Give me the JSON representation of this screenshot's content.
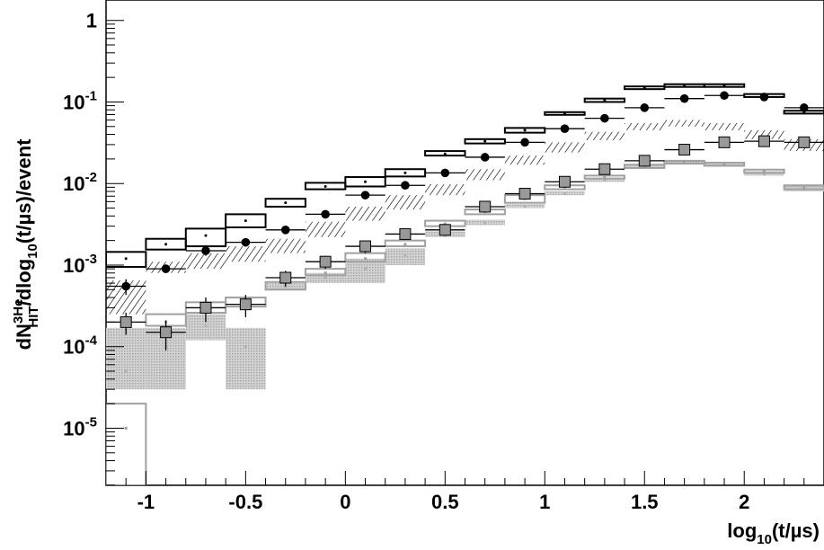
{
  "chart_data": {
    "type": "line",
    "title": "",
    "xlabel": "log10(t/µs)",
    "ylabel": "dN3He_HIT/dlog10(t/µs)/event",
    "xlim": [
      -1.2,
      2.4
    ],
    "ylim_log10": [
      -5.7,
      0.25
    ],
    "log_y": true,
    "grid": false,
    "x_ticks": [
      {
        "value": -1,
        "label": "-1"
      },
      {
        "value": -0.5,
        "label": "-0.5"
      },
      {
        "value": 0,
        "label": "0"
      },
      {
        "value": 0.5,
        "label": "0.5"
      },
      {
        "value": 1,
        "label": "1"
      },
      {
        "value": 1.5,
        "label": "1.5"
      },
      {
        "value": 2,
        "label": "2"
      }
    ],
    "y_ticks": [
      {
        "value": 1,
        "base": "1",
        "exp": ""
      },
      {
        "value": 0.1,
        "base": "10",
        "exp": "-1"
      },
      {
        "value": 0.01,
        "base": "10",
        "exp": "-2"
      },
      {
        "value": 0.001,
        "base": "10",
        "exp": "-3"
      },
      {
        "value": 0.0001,
        "base": "10",
        "exp": "-4"
      },
      {
        "value": 1e-05,
        "base": "10",
        "exp": "-5"
      }
    ],
    "bin_width": 0.2,
    "series": [
      {
        "style": "black-open-boxes",
        "color": "#000000",
        "x": [
          -1.1,
          -0.9,
          -0.7,
          -0.5,
          -0.3,
          -0.1,
          0.1,
          0.3,
          0.5,
          0.7,
          0.9,
          1.1,
          1.3,
          1.5,
          1.7,
          1.9,
          2.1,
          2.3
        ],
        "y": [
          0.0012,
          0.0018,
          0.0023,
          0.0035,
          0.0058,
          0.0092,
          0.0105,
          0.0135,
          0.023,
          0.033,
          0.045,
          0.072,
          0.105,
          0.15,
          0.16,
          0.16,
          0.12,
          0.075
        ],
        "y_lo": [
          0.00095,
          0.00155,
          0.0017,
          0.0029,
          0.0052,
          0.0085,
          0.0092,
          0.0122,
          0.022,
          0.031,
          0.042,
          0.07,
          0.1,
          0.15,
          0.16,
          0.16,
          0.115,
          0.072
        ],
        "y_hi": [
          0.00145,
          0.0021,
          0.0028,
          0.0042,
          0.0065,
          0.0102,
          0.012,
          0.015,
          0.025,
          0.035,
          0.048,
          0.075,
          0.11,
          0.155,
          0.165,
          0.165,
          0.125,
          0.078
        ]
      },
      {
        "style": "black-filled-circles",
        "color": "#000000",
        "x": [
          -1.1,
          -0.9,
          -0.7,
          -0.5,
          -0.3,
          -0.1,
          0.1,
          0.3,
          0.5,
          0.7,
          0.9,
          1.1,
          1.3,
          1.5,
          1.7,
          1.9,
          2.1,
          2.3
        ],
        "y": [
          0.00055,
          0.0009,
          0.0015,
          0.0019,
          0.0027,
          0.0042,
          0.0072,
          0.0095,
          0.0135,
          0.021,
          0.032,
          0.047,
          0.063,
          0.085,
          0.11,
          0.12,
          0.115,
          0.085
        ],
        "y_err": [
          0.00012,
          0.0001,
          0.0002,
          0.0002,
          0.0002,
          0.0003,
          0.0004,
          0.0005,
          0.0006,
          0.0008,
          0.001,
          0.0015,
          0.002,
          0.003,
          0.003,
          0.003,
          0.003,
          0.003
        ]
      },
      {
        "style": "black-hatched-bands",
        "color": "#000000",
        "x": [
          -1.1,
          -0.9,
          -0.7,
          -0.5,
          -0.3,
          -0.1,
          0.1,
          0.3,
          0.5,
          0.7,
          0.9,
          1.1,
          1.3,
          1.5,
          1.7,
          1.9,
          2.1,
          2.3
        ],
        "y_lo": [
          0.00025,
          0.0008,
          0.0009,
          0.0011,
          0.0014,
          0.0022,
          0.0035,
          0.0048,
          0.0072,
          0.011,
          0.017,
          0.024,
          0.034,
          0.045,
          0.05,
          0.045,
          0.035,
          0.025
        ],
        "y_hi": [
          0.00065,
          0.0011,
          0.0014,
          0.0017,
          0.0021,
          0.0034,
          0.0052,
          0.0072,
          0.0098,
          0.015,
          0.022,
          0.032,
          0.043,
          0.055,
          0.06,
          0.055,
          0.045,
          0.035
        ]
      },
      {
        "style": "grey-filled-squares",
        "color": "#999999",
        "x": [
          -1.1,
          -0.9,
          -0.7,
          -0.5,
          -0.3,
          -0.1,
          0.1,
          0.3,
          0.5,
          0.7,
          0.9,
          1.1,
          1.3,
          1.5,
          1.7,
          1.9,
          2.1,
          2.3
        ],
        "y": [
          0.0002,
          0.00015,
          0.0003,
          0.00033,
          0.0007,
          0.0011,
          0.0017,
          0.0024,
          0.0027,
          0.0052,
          0.0075,
          0.0105,
          0.015,
          0.019,
          0.026,
          0.032,
          0.033,
          0.032
        ],
        "y_err": [
          6e-05,
          6e-05,
          0.0001,
          0.0001,
          0.00015,
          0.0002,
          0.0003,
          0.0003,
          0.0003,
          0.0005,
          0.0006,
          0.0008,
          0.001,
          0.0012,
          0.0015,
          0.002,
          0.002,
          0.002
        ]
      },
      {
        "style": "grey-open-boxes",
        "color": "#a0a0a0",
        "x": [
          -1.1,
          -0.9,
          -0.7,
          -0.5,
          -0.3,
          -0.1,
          0.1,
          0.3,
          0.5,
          0.7,
          0.9,
          1.1,
          1.3,
          1.5,
          1.7,
          1.9,
          2.1,
          2.3
        ],
        "y": [
          1e-05,
          0.0002,
          0.0003,
          0.00035,
          0.00055,
          0.0008,
          0.0012,
          0.0018,
          0.0032,
          0.0045,
          0.0065,
          0.009,
          0.012,
          0.016,
          0.018,
          0.017,
          0.014,
          0.009
        ],
        "y_lo": [
          2e-06,
          0.00018,
          0.00026,
          0.00031,
          0.0005,
          0.00075,
          0.0011,
          0.0017,
          0.003,
          0.0042,
          0.0058,
          0.0085,
          0.0115,
          0.0155,
          0.0175,
          0.0165,
          0.0135,
          0.0085
        ],
        "y_hi": [
          2e-05,
          0.00025,
          0.00035,
          0.0004,
          0.00062,
          0.0009,
          0.0014,
          0.002,
          0.0035,
          0.0048,
          0.0072,
          0.0095,
          0.0125,
          0.017,
          0.019,
          0.018,
          0.0148,
          0.0095
        ]
      },
      {
        "style": "grey-shaded-bands",
        "color": "#bdbdbd",
        "x": [
          -1.1,
          -0.9,
          -0.7,
          -0.5,
          -0.3,
          -0.1,
          0.1,
          0.3,
          0.5,
          0.7,
          0.9,
          1.1,
          1.3,
          1.5,
          1.7,
          1.9,
          2.1,
          2.3
        ],
        "y": [
          5e-05,
          0.0001,
          0.00018,
          0.0001,
          0.00055,
          0.0007,
          0.0009,
          0.0013,
          0.0023,
          0.0033,
          0.0052,
          0.0075,
          0.011,
          0.016,
          0.018,
          0.017,
          0.013,
          0.0085
        ],
        "y_lo": [
          3e-05,
          3e-05,
          0.00012,
          3e-05,
          0.0005,
          0.0006,
          0.0006,
          0.001,
          0.0022,
          0.0031,
          0.005,
          0.0072,
          0.0105,
          0.0155,
          0.0175,
          0.0165,
          0.0125,
          0.008
        ],
        "y_hi": [
          0.00017,
          0.00017,
          0.00025,
          0.00017,
          0.0006,
          0.0008,
          0.0012,
          0.0016,
          0.0026,
          0.0036,
          0.0056,
          0.008,
          0.0118,
          0.0168,
          0.019,
          0.018,
          0.0142,
          0.0095
        ]
      }
    ]
  }
}
